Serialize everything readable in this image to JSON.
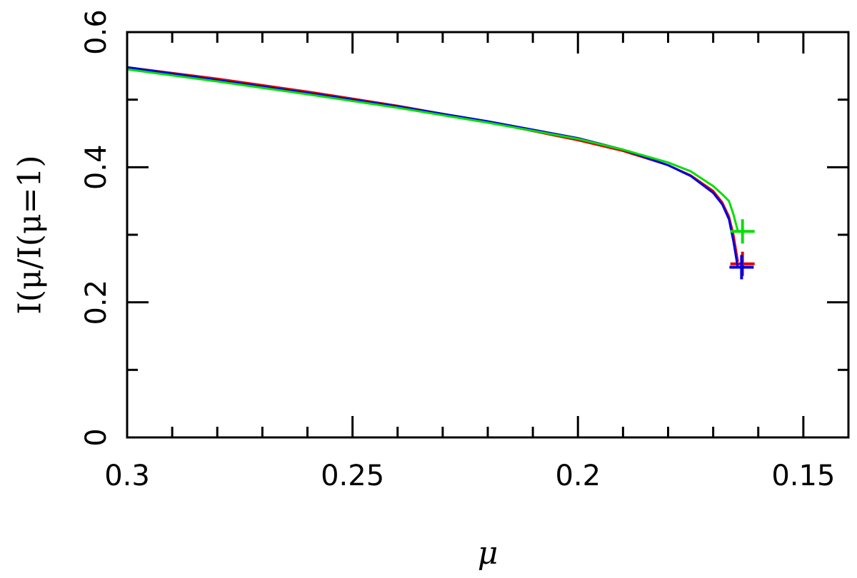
{
  "chart_data": {
    "type": "line",
    "title": "",
    "xlabel": "μ",
    "ylabel": "I(μ/I(μ=1)",
    "xlim": [
      0.3,
      0.14
    ],
    "ylim": [
      0,
      0.6
    ],
    "x_ticks": [
      {
        "value": 0.3,
        "label": "0.3"
      },
      {
        "value": 0.25,
        "label": "0.25"
      },
      {
        "value": 0.2,
        "label": "0.2"
      },
      {
        "value": 0.15,
        "label": "0.15"
      }
    ],
    "y_ticks": [
      {
        "value": 0,
        "label": "0"
      },
      {
        "value": 0.2,
        "label": "0.2"
      },
      {
        "value": 0.4,
        "label": "0.4"
      },
      {
        "value": 0.6,
        "label": "0.6"
      }
    ],
    "x_minor_step": 0.01,
    "y_minor_step": 0.1,
    "grid": false,
    "legend": "none",
    "series": [
      {
        "color": "#e00000",
        "x": [
          0.3,
          0.28,
          0.26,
          0.24,
          0.22,
          0.2,
          0.19,
          0.18,
          0.175,
          0.17,
          0.168,
          0.1665,
          0.1655,
          0.1645
        ],
        "y": [
          0.548,
          0.531,
          0.512,
          0.491,
          0.467,
          0.44,
          0.424,
          0.403,
          0.388,
          0.365,
          0.348,
          0.327,
          0.3,
          0.26
        ],
        "end_marker": {
          "x": 0.1635,
          "y": 0.257
        }
      },
      {
        "color": "#0000e0",
        "x": [
          0.3,
          0.28,
          0.26,
          0.24,
          0.22,
          0.2,
          0.19,
          0.18,
          0.175,
          0.17,
          0.168,
          0.1665,
          0.1655,
          0.1645
        ],
        "y": [
          0.548,
          0.529,
          0.51,
          0.49,
          0.468,
          0.443,
          0.426,
          0.403,
          0.387,
          0.362,
          0.345,
          0.323,
          0.29,
          0.25
        ],
        "end_marker": {
          "x": 0.1637,
          "y": 0.252
        }
      },
      {
        "color": "#00e000",
        "x": [
          0.3,
          0.28,
          0.26,
          0.24,
          0.22,
          0.2,
          0.19,
          0.18,
          0.175,
          0.17,
          0.168,
          0.1665,
          0.1655,
          0.1645
        ],
        "y": [
          0.545,
          0.527,
          0.508,
          0.488,
          0.466,
          0.442,
          0.426,
          0.407,
          0.394,
          0.372,
          0.36,
          0.35,
          0.33,
          0.305
        ],
        "end_marker": {
          "x": 0.1635,
          "y": 0.305
        }
      }
    ]
  }
}
